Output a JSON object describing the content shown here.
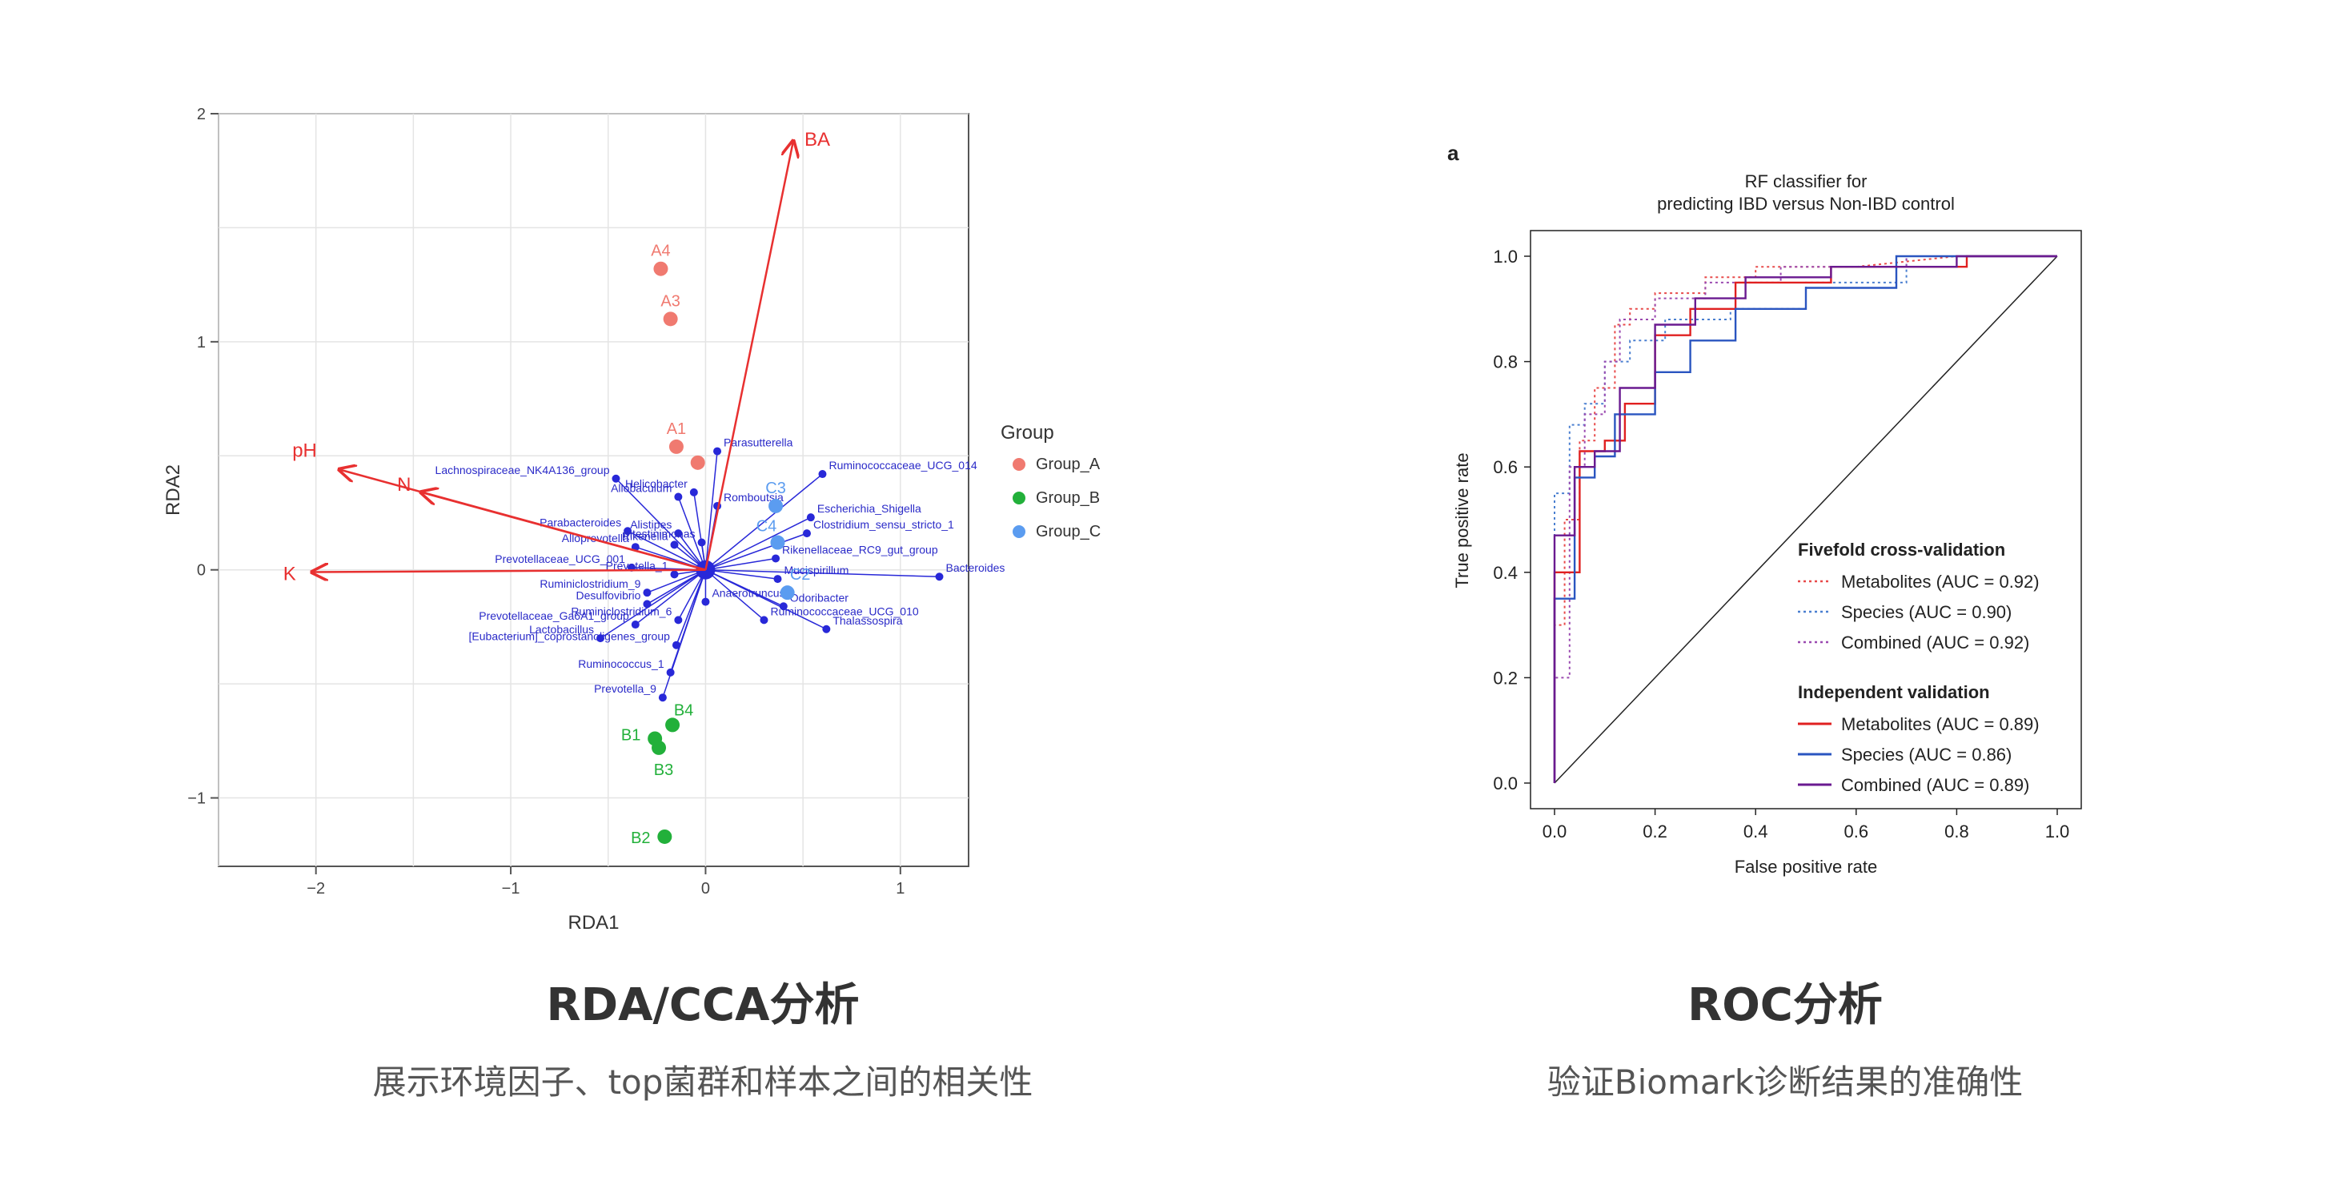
{
  "captions": {
    "left_title": "RDA/CCA分析",
    "left_sub": "展示环境因子、top菌群和样本之间的相关性",
    "right_title": "ROC分析",
    "right_sub": "验证Biomark诊断结果的准确性"
  },
  "chart_data": [
    {
      "type": "scatter",
      "xlabel": "RDA1",
      "ylabel": "RDA2",
      "xlim": [
        -2.5,
        1.35
      ],
      "ylim": [
        -1.3,
        2.0
      ],
      "xticks": [
        -2,
        -1,
        0,
        1
      ],
      "yticks": [
        -1,
        0,
        1,
        2
      ],
      "grid": true,
      "legend": {
        "title": "Group",
        "position": "right",
        "entries": [
          {
            "name": "Group_A",
            "color": "#f07a70"
          },
          {
            "name": "Group_B",
            "color": "#22b03a"
          },
          {
            "name": "Group_C",
            "color": "#5b9cf0"
          }
        ]
      },
      "samples": [
        {
          "label": "A4",
          "group": "Group_A",
          "x": -0.23,
          "y": 1.32
        },
        {
          "label": "A3",
          "group": "Group_A",
          "x": -0.18,
          "y": 1.1
        },
        {
          "label": "A1",
          "group": "Group_A",
          "x": -0.15,
          "y": 0.54
        },
        {
          "label": "",
          "group": "Group_A",
          "x": -0.04,
          "y": 0.47
        },
        {
          "label": "C3",
          "group": "Group_C",
          "x": 0.36,
          "y": 0.28
        },
        {
          "label": "C4",
          "group": "Group_C",
          "x": 0.37,
          "y": 0.12
        },
        {
          "label": "C2",
          "group": "Group_C",
          "x": 0.42,
          "y": -0.1
        },
        {
          "label": "B4",
          "group": "Group_B",
          "x": -0.17,
          "y": -0.68
        },
        {
          "label": "B1",
          "group": "Group_B",
          "x": -0.26,
          "y": -0.74
        },
        {
          "label": "B3",
          "group": "Group_B",
          "x": -0.24,
          "y": -0.78
        },
        {
          "label": "B2",
          "group": "Group_B",
          "x": -0.21,
          "y": -1.17
        }
      ],
      "env_vectors": [
        {
          "label": "BA",
          "x": 0.45,
          "y": 1.88
        },
        {
          "label": "pH",
          "x": -1.88,
          "y": 0.44
        },
        {
          "label": "N",
          "x": -1.46,
          "y": 0.34
        },
        {
          "label": "K",
          "x": -2.02,
          "y": -0.01
        }
      ],
      "taxa": [
        {
          "label": "Parasutterella",
          "x": 0.06,
          "y": 0.52
        },
        {
          "label": "Lachnospiraceae_NK4A136_group",
          "x": -0.46,
          "y": 0.4
        },
        {
          "label": "Helicobacter",
          "x": -0.06,
          "y": 0.34
        },
        {
          "label": "Ruminococcaceae_UCG_014",
          "x": 0.6,
          "y": 0.42
        },
        {
          "label": "Allobaculum",
          "x": -0.14,
          "y": 0.32
        },
        {
          "label": "Romboutsia",
          "x": 0.06,
          "y": 0.28
        },
        {
          "label": "Parabacteroides",
          "x": -0.4,
          "y": 0.17
        },
        {
          "label": "Alistipes",
          "x": -0.14,
          "y": 0.16
        },
        {
          "label": "Escherichia_Shigella",
          "x": 0.54,
          "y": 0.23
        },
        {
          "label": "Alloprevotella",
          "x": -0.36,
          "y": 0.1
        },
        {
          "label": "Rikenella",
          "x": -0.16,
          "y": 0.11
        },
        {
          "label": "Clostridium_sensu_stricto_1",
          "x": 0.52,
          "y": 0.16
        },
        {
          "label": "Intestinimonas",
          "x": -0.02,
          "y": 0.12
        },
        {
          "label": "Rikenellaceae_RC9_gut_group",
          "x": 0.36,
          "y": 0.05
        },
        {
          "label": "Prevotellaceae_UCG_001",
          "x": -0.38,
          "y": 0.01
        },
        {
          "label": "Prevotella_1",
          "x": -0.16,
          "y": -0.02
        },
        {
          "label": "Mucispirillum",
          "x": 0.37,
          "y": -0.04
        },
        {
          "label": "Bacteroides",
          "x": 1.2,
          "y": -0.03
        },
        {
          "label": "Ruminiclostridium_9",
          "x": -0.3,
          "y": -0.1
        },
        {
          "label": "Desulfovibrio",
          "x": -0.3,
          "y": -0.15
        },
        {
          "label": "Anaerotruncus",
          "x": 0.0,
          "y": -0.14
        },
        {
          "label": "Odoribacter",
          "x": 0.4,
          "y": -0.16
        },
        {
          "label": "Prevotellaceae_Ga6A1_group",
          "x": -0.36,
          "y": -0.24
        },
        {
          "label": "Ruminiclostridium_6",
          "x": -0.14,
          "y": -0.22
        },
        {
          "label": "Ruminococcaceae_UCG_010",
          "x": 0.3,
          "y": -0.22
        },
        {
          "label": "Thalassospira",
          "x": 0.62,
          "y": -0.26
        },
        {
          "label": "[Eubacterium]_coprostanoligenes_group",
          "x": -0.15,
          "y": -0.33
        },
        {
          "label": "Lactobacillus",
          "x": -0.54,
          "y": -0.3
        },
        {
          "label": "Ruminococcus_1",
          "x": -0.18,
          "y": -0.45
        },
        {
          "label": "Prevotella_9",
          "x": -0.22,
          "y": -0.56
        }
      ]
    },
    {
      "type": "line",
      "panel_label": "a",
      "title": [
        "RF classifier for",
        "predicting IBD versus Non-IBD control"
      ],
      "xlabel": "False positive rate",
      "ylabel": "True positive rate",
      "xlim": [
        0,
        1
      ],
      "ylim": [
        0,
        1
      ],
      "ticks": [
        "0.0",
        "0.2",
        "0.4",
        "0.6",
        "0.8",
        "1.0"
      ],
      "legend_groups": [
        "Fivefold cross-validation",
        "Independent validation"
      ],
      "series": [
        {
          "name": "Metabolites (AUC = 0.92)",
          "group": "Fivefold cross-validation",
          "style": "dotted",
          "color": "#e84a4a",
          "x": [
            0,
            0,
            0.02,
            0.02,
            0.05,
            0.05,
            0.08,
            0.08,
            0.12,
            0.12,
            0.15,
            0.15,
            0.2,
            0.2,
            0.3,
            0.3,
            0.4,
            0.4,
            0.6,
            0.8,
            1.0
          ],
          "y": [
            0,
            0.3,
            0.3,
            0.5,
            0.5,
            0.65,
            0.65,
            0.75,
            0.75,
            0.87,
            0.87,
            0.9,
            0.9,
            0.93,
            0.93,
            0.96,
            0.96,
            0.98,
            0.98,
            1.0,
            1.0
          ]
        },
        {
          "name": "Species (AUC = 0.90)",
          "group": "Fivefold cross-validation",
          "style": "dotted",
          "color": "#4a7fd0",
          "x": [
            0,
            0,
            0.03,
            0.03,
            0.06,
            0.06,
            0.1,
            0.1,
            0.15,
            0.15,
            0.22,
            0.22,
            0.35,
            0.35,
            0.5,
            0.5,
            0.7,
            0.7,
            1.0
          ],
          "y": [
            0,
            0.55,
            0.55,
            0.68,
            0.68,
            0.72,
            0.72,
            0.8,
            0.8,
            0.84,
            0.84,
            0.88,
            0.88,
            0.9,
            0.9,
            0.95,
            0.95,
            1.0,
            1.0
          ]
        },
        {
          "name": "Combined (AUC = 0.92)",
          "group": "Fivefold cross-validation",
          "style": "dotted",
          "color": "#9a4ab0",
          "x": [
            0,
            0,
            0.03,
            0.03,
            0.06,
            0.06,
            0.1,
            0.1,
            0.13,
            0.13,
            0.2,
            0.2,
            0.3,
            0.3,
            0.45,
            0.45,
            0.7,
            0.7,
            1.0
          ],
          "y": [
            0,
            0.2,
            0.2,
            0.6,
            0.6,
            0.7,
            0.7,
            0.8,
            0.8,
            0.88,
            0.88,
            0.92,
            0.92,
            0.95,
            0.95,
            0.98,
            0.98,
            1.0,
            1.0
          ]
        },
        {
          "name": "Metabolites (AUC = 0.89)",
          "group": "Independent validation",
          "style": "solid",
          "color": "#e02020",
          "x": [
            0,
            0,
            0.05,
            0.05,
            0.1,
            0.1,
            0.14,
            0.14,
            0.2,
            0.2,
            0.27,
            0.27,
            0.36,
            0.36,
            0.55,
            0.55,
            0.82,
            0.82,
            1.0
          ],
          "y": [
            0,
            0.4,
            0.4,
            0.63,
            0.63,
            0.65,
            0.65,
            0.72,
            0.72,
            0.85,
            0.85,
            0.9,
            0.9,
            0.95,
            0.95,
            0.98,
            0.98,
            1.0,
            1.0
          ]
        },
        {
          "name": "Species (AUC = 0.86)",
          "group": "Independent validation",
          "style": "solid",
          "color": "#2a55c0",
          "x": [
            0,
            0,
            0.04,
            0.04,
            0.08,
            0.08,
            0.12,
            0.12,
            0.2,
            0.2,
            0.27,
            0.27,
            0.36,
            0.36,
            0.5,
            0.5,
            0.68,
            0.68,
            1.0
          ],
          "y": [
            0,
            0.35,
            0.35,
            0.58,
            0.58,
            0.62,
            0.62,
            0.7,
            0.7,
            0.78,
            0.78,
            0.84,
            0.84,
            0.9,
            0.9,
            0.94,
            0.94,
            1.0,
            1.0
          ]
        },
        {
          "name": "Combined (AUC = 0.89)",
          "group": "Independent validation",
          "style": "solid",
          "color": "#6a1a90",
          "x": [
            0,
            0,
            0.04,
            0.04,
            0.08,
            0.08,
            0.13,
            0.13,
            0.2,
            0.2,
            0.28,
            0.28,
            0.38,
            0.38,
            0.55,
            0.55,
            0.8,
            0.8,
            1.0
          ],
          "y": [
            0,
            0.47,
            0.47,
            0.6,
            0.6,
            0.63,
            0.63,
            0.75,
            0.75,
            0.87,
            0.87,
            0.92,
            0.92,
            0.96,
            0.96,
            0.98,
            0.98,
            1.0,
            1.0
          ]
        }
      ],
      "reference_line": {
        "x": [
          0,
          1
        ],
        "y": [
          0,
          1
        ]
      }
    }
  ]
}
